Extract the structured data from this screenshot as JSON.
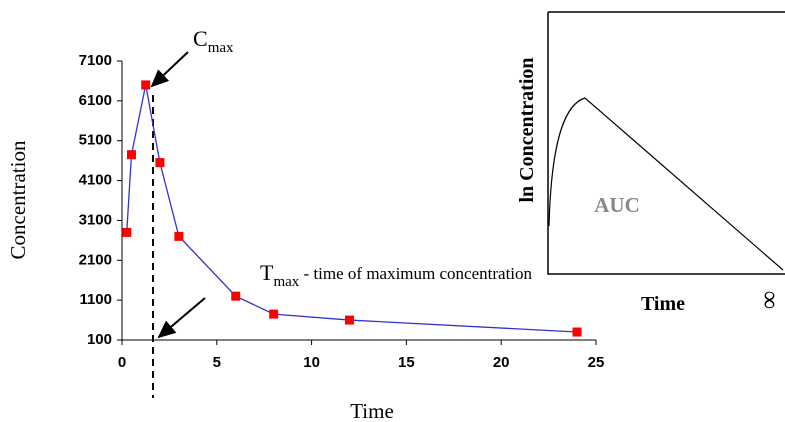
{
  "chart_data": [
    {
      "type": "line",
      "x_label": "Time",
      "y_label": "Concentration",
      "x": [
        0.25,
        0.5,
        1.25,
        2,
        3,
        6,
        8,
        12,
        24
      ],
      "series": [
        {
          "name": "Concentration",
          "color": "#3333cc",
          "marker_color": "#ff0000",
          "values": [
            2800,
            4750,
            6500,
            4550,
            2700,
            1200,
            750,
            600,
            300
          ]
        }
      ],
      "xlim": [
        0,
        25
      ],
      "xticks": [
        0,
        5,
        10,
        15,
        20,
        25
      ],
      "ylim": [
        100,
        7100
      ],
      "yticks": [
        100,
        1100,
        2100,
        3100,
        4100,
        5100,
        6100,
        7100
      ],
      "annotations": [
        {
          "text": "C",
          "sub": "max"
        },
        {
          "text": "T",
          "sub": "max",
          "suffix": " - time of maximum concentration"
        }
      ]
    },
    {
      "type": "diagram",
      "y_label": "ln Concentration",
      "x_label": "Time",
      "annotations": [
        "AUC",
        "∞"
      ]
    }
  ]
}
